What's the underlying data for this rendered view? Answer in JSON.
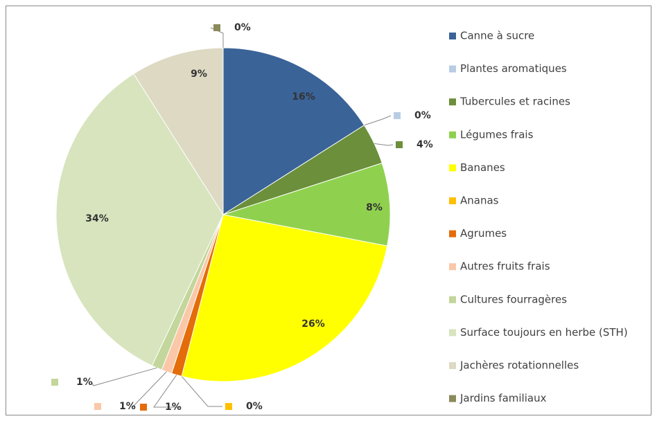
{
  "chart_data": {
    "type": "pie",
    "categories": [
      "Canne à sucre",
      "Plantes aromatiques",
      "Tubercules et racines",
      "Légumes frais",
      "Bananes",
      "Ananas",
      "Agrumes",
      "Autres fruits frais",
      "Cultures fourragères",
      "Surface toujours en herbe (STH)",
      "Jachères rotationnelles",
      "Jardins familiaux"
    ],
    "values": [
      16,
      0,
      4,
      8,
      26,
      0,
      1,
      1,
      1,
      34,
      9,
      0
    ],
    "value_labels": [
      "16%",
      "0%",
      "4%",
      "8%",
      "26%",
      "0%",
      "1%",
      "1%",
      "1%",
      "34%",
      "9%",
      "0%"
    ],
    "colors": [
      "#3a6398",
      "#b8cce4",
      "#6b8f3a",
      "#8fd14f",
      "#ffff00",
      "#ffc000",
      "#e46c0a",
      "#fac8a8",
      "#c3d69b",
      "#d7e4bd",
      "#ddd9c3",
      "#8a8a5a"
    ],
    "legend": "right"
  }
}
